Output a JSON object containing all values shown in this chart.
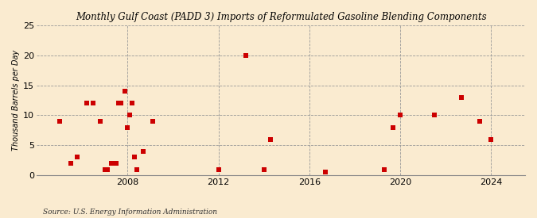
{
  "title": "Monthly Gulf Coast (PADD 3) Imports of Reformulated Gasoline Blending Components",
  "ylabel": "Thousand Barrels per Day",
  "source": "Source: U.S. Energy Information Administration",
  "background_color": "#faebd0",
  "plot_bg_color": "#faebd0",
  "marker_color": "#cc0000",
  "marker_size": 16,
  "xlim": [
    2004.0,
    2025.5
  ],
  "ylim": [
    0,
    25
  ],
  "yticks": [
    0,
    5,
    10,
    15,
    20,
    25
  ],
  "xticks": [
    2008,
    2012,
    2016,
    2020,
    2024
  ],
  "data_points": [
    [
      2005.0,
      9.0
    ],
    [
      2005.5,
      2.0
    ],
    [
      2005.8,
      3.0
    ],
    [
      2006.2,
      12.0
    ],
    [
      2006.5,
      12.0
    ],
    [
      2006.8,
      9.0
    ],
    [
      2007.0,
      1.0
    ],
    [
      2007.1,
      1.0
    ],
    [
      2007.3,
      2.0
    ],
    [
      2007.5,
      2.0
    ],
    [
      2007.6,
      12.0
    ],
    [
      2007.7,
      12.0
    ],
    [
      2007.9,
      14.0
    ],
    [
      2008.0,
      8.0
    ],
    [
      2008.1,
      10.0
    ],
    [
      2008.2,
      12.0
    ],
    [
      2008.3,
      3.0
    ],
    [
      2008.4,
      1.0
    ],
    [
      2008.7,
      4.0
    ],
    [
      2009.1,
      9.0
    ],
    [
      2012.0,
      1.0
    ],
    [
      2013.2,
      20.0
    ],
    [
      2014.0,
      1.0
    ],
    [
      2014.3,
      6.0
    ],
    [
      2016.7,
      0.5
    ],
    [
      2019.3,
      1.0
    ],
    [
      2019.7,
      8.0
    ],
    [
      2020.0,
      10.0
    ],
    [
      2021.5,
      10.0
    ],
    [
      2022.7,
      13.0
    ],
    [
      2023.5,
      9.0
    ],
    [
      2024.0,
      6.0
    ]
  ]
}
